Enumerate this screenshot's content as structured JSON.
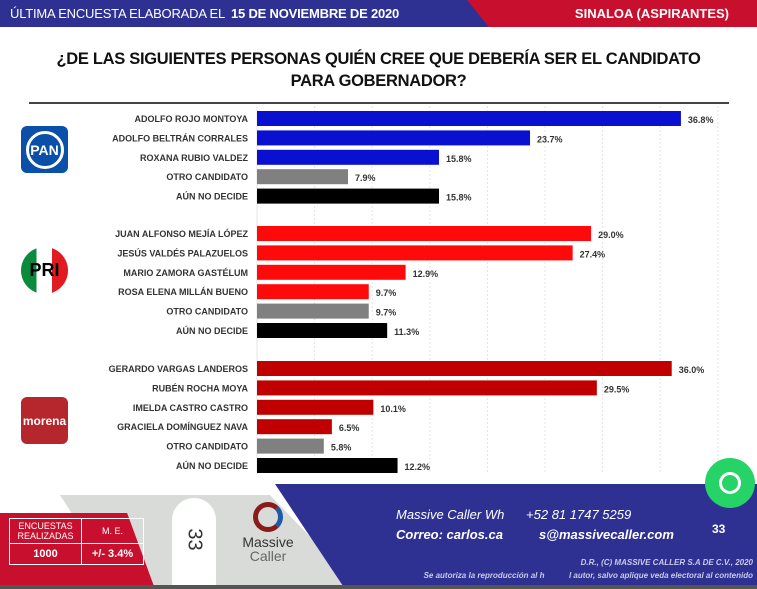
{
  "header": {
    "prefix": "ÚLTIMA ENCUESTA ELABORADA EL",
    "date": "15 DE NOVIEMBRE DE 2020",
    "region": "SINALOA (ASPIRANTES)"
  },
  "chart_data": {
    "type": "bar",
    "orientation": "horizontal",
    "title": "¿DE LAS SIGUIENTES PERSONAS QUIÉN CREE QUE DEBERÍA SER EL CANDIDATO PARA GOBERNADOR?",
    "xlim": [
      0,
      41
    ],
    "grid": "vertical",
    "groups": [
      {
        "party": "PAN",
        "color": "#0a10d0",
        "items": [
          {
            "label": "ADOLFO ROJO MONTOYA",
            "value": 36.8,
            "display": "36.8%"
          },
          {
            "label": "ADOLFO BELTRÁN CORRALES",
            "value": 23.7,
            "display": "23.7%"
          },
          {
            "label": "ROXANA RUBIO VALDEZ",
            "value": 15.8,
            "display": "15.8%"
          },
          {
            "label": "OTRO CANDIDATO",
            "value": 7.9,
            "display": "7.9%",
            "color": "#808080"
          },
          {
            "label": "AÚN NO DECIDE",
            "value": 15.8,
            "display": "15.8%",
            "color": "#000000"
          }
        ]
      },
      {
        "party": "PRI",
        "color": "#ff0a0a",
        "items": [
          {
            "label": "JUAN ALFONSO MEJÍA LÓPEZ",
            "value": 29.0,
            "display": "29.0%"
          },
          {
            "label": "JESÚS VALDÉS PALAZUELOS",
            "value": 27.4,
            "display": "27.4%"
          },
          {
            "label": "MARIO ZAMORA GASTÉLUM",
            "value": 12.9,
            "display": "12.9%"
          },
          {
            "label": "ROSA ELENA MILLÁN BUENO",
            "value": 9.7,
            "display": "9.7%"
          },
          {
            "label": "OTRO CANDIDATO",
            "value": 9.7,
            "display": "9.7%",
            "color": "#808080"
          },
          {
            "label": "AÚN NO DECIDE",
            "value": 11.3,
            "display": "11.3%",
            "color": "#000000"
          }
        ]
      },
      {
        "party": "morena",
        "color": "#c00000",
        "items": [
          {
            "label": "GERARDO VARGAS LANDEROS",
            "value": 36.0,
            "display": "36.0%"
          },
          {
            "label": "RUBÉN ROCHA MOYA",
            "value": 29.5,
            "display": "29.5%"
          },
          {
            "label": "IMELDA CASTRO CASTRO",
            "value": 10.1,
            "display": "10.1%"
          },
          {
            "label": "GRACIELA DOMÍNGUEZ NAVA",
            "value": 6.5,
            "display": "6.5%"
          },
          {
            "label": "OTRO CANDIDATO",
            "value": 5.8,
            "display": "5.8%",
            "color": "#808080"
          },
          {
            "label": "AÚN NO DECIDE",
            "value": 12.2,
            "display": "12.2%",
            "color": "#000000"
          }
        ]
      }
    ]
  },
  "footer": {
    "stats": {
      "surveys_label": "ENCUESTAS REALIZADAS",
      "surveys": "1000",
      "me_label": "M. E.",
      "me": "+/- 3.4%"
    },
    "brand_line1": "Massive",
    "brand_line2": "Caller",
    "whatsapp": "Massive Caller Wh      +52 81 1747 5259",
    "email": "Correo: carlos.ca          s@massivecaller.com",
    "page": "33",
    "tab_page": "33",
    "copyright": "D.R., (C) MASSIVE CALLER S.A DE C.V., 2020",
    "notice": "Se autoriza la reproducción al h           l autor, salvo aplique veda electoral al contenido"
  }
}
